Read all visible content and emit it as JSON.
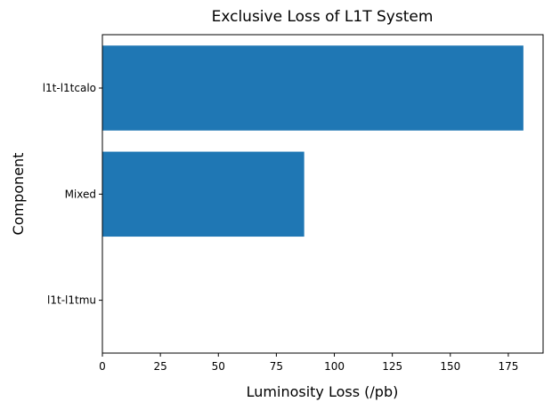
{
  "chart_data": {
    "type": "bar",
    "orientation": "horizontal",
    "title": "Exclusive Loss of L1T System",
    "xlabel": "Luminosity Loss (/pb)",
    "ylabel": "Component",
    "categories": [
      "l1t-l1tcalo",
      "Mixed",
      "l1t-l1tmu"
    ],
    "values": [
      181.5,
      87.0,
      0.0
    ],
    "xlim": [
      0,
      190
    ],
    "xticks": [
      0,
      25,
      50,
      75,
      100,
      125,
      150,
      175
    ],
    "grid": false,
    "legend": "none",
    "bar_color": "#1f77b4"
  }
}
